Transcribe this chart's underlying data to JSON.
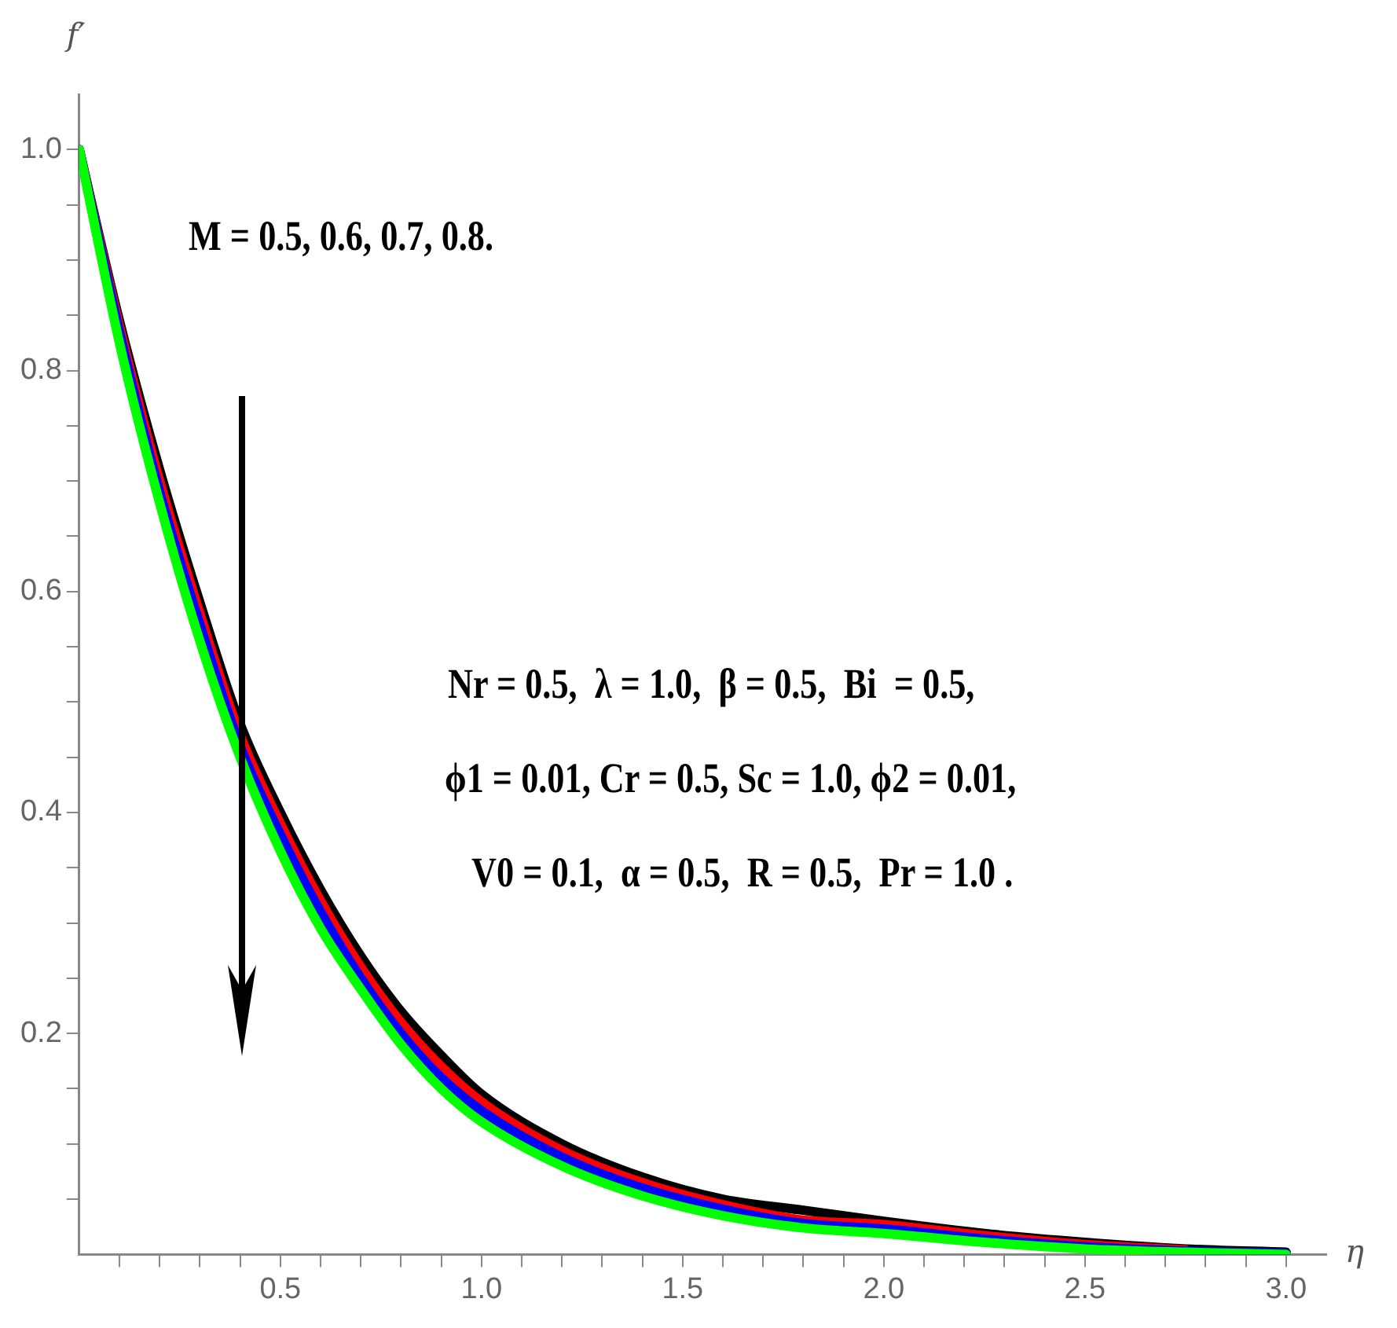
{
  "chart_data": {
    "type": "line",
    "xlabel": "η",
    "ylabel": "f′",
    "x": [
      0,
      0.1,
      0.2,
      0.3,
      0.4,
      0.5,
      0.6,
      0.7,
      0.8,
      0.9,
      1.0,
      1.2,
      1.4,
      1.6,
      1.8,
      2.0,
      2.25,
      2.5,
      2.75,
      3.0
    ],
    "series": [
      {
        "color": "#000000",
        "values": [
          1,
          0.845,
          0.71,
          0.59,
          0.48,
          0.4,
          0.33,
          0.27,
          0.22,
          0.18,
          0.145,
          0.1,
          0.07,
          0.05,
          0.04,
          0.03,
          0.019,
          0.011,
          0.005,
          0.002
        ]
      },
      {
        "color": "#ff0000",
        "values": [
          1,
          0.84,
          0.7,
          0.58,
          0.47,
          0.39,
          0.32,
          0.26,
          0.21,
          0.17,
          0.138,
          0.094,
          0.065,
          0.045,
          0.031,
          0.027,
          0.017,
          0.009,
          0.004,
          null
        ]
      },
      {
        "color": "#0000ff",
        "values": [
          1,
          0.835,
          0.69,
          0.57,
          0.46,
          0.38,
          0.31,
          0.25,
          0.2,
          0.16,
          0.13,
          0.088,
          0.06,
          0.041,
          0.028,
          0.023,
          0.014,
          0.007,
          0.003,
          0.001
        ]
      },
      {
        "color": "#00ff00",
        "values": [
          1,
          0.825,
          0.68,
          0.555,
          0.45,
          0.365,
          0.295,
          0.24,
          0.19,
          0.15,
          0.12,
          0.08,
          0.053,
          0.035,
          0.024,
          0.019,
          0.011,
          0.005,
          0.002,
          0
        ]
      }
    ],
    "xlim": [
      0,
      3.1
    ],
    "ylim": [
      0,
      1.05
    ],
    "xticks": [
      {
        "value": 0.1,
        "label": null
      },
      {
        "value": 0.2,
        "label": null
      },
      {
        "value": 0.3,
        "label": null
      },
      {
        "value": 0.4,
        "label": null
      },
      0.5,
      {
        "value": 0.6,
        "label": null
      },
      {
        "value": 0.7,
        "label": null
      },
      {
        "value": 0.8,
        "label": null
      },
      {
        "value": 0.9,
        "label": null
      },
      {
        "value": 1.0,
        "label": "1.0"
      },
      {
        "value": 1.1,
        "label": null
      },
      {
        "value": 1.2,
        "label": null
      },
      {
        "value": 1.3,
        "label": null
      },
      {
        "value": 1.4,
        "label": null
      },
      1.5,
      {
        "value": 1.6,
        "label": null
      },
      {
        "value": 1.7,
        "label": null
      },
      {
        "value": 1.8,
        "label": null
      },
      {
        "value": 1.9,
        "label": null
      },
      {
        "value": 2.0,
        "label": "2.0"
      },
      {
        "value": 2.1,
        "label": null
      },
      {
        "value": 2.2,
        "label": null
      },
      {
        "value": 2.3,
        "label": null
      },
      {
        "value": 2.4,
        "label": null
      },
      2.5,
      {
        "value": 2.6,
        "label": null
      },
      {
        "value": 2.7,
        "label": null
      },
      {
        "value": 2.8,
        "label": null
      },
      {
        "value": 2.9,
        "label": null
      },
      {
        "value": 3.0,
        "label": "3.0"
      }
    ],
    "yticks": [
      {
        "value": 0.05,
        "label": null
      },
      {
        "value": 0.1,
        "label": null
      },
      {
        "value": 0.15,
        "label": null
      },
      0.2,
      {
        "value": 0.25,
        "label": null
      },
      {
        "value": 0.3,
        "label": null
      },
      {
        "value": 0.35,
        "label": null
      },
      0.4,
      {
        "value": 0.45,
        "label": null
      },
      {
        "value": 0.5,
        "label": null
      },
      {
        "value": 0.55,
        "label": null
      },
      0.6,
      {
        "value": 0.65,
        "label": null
      },
      {
        "value": 0.7,
        "label": null
      },
      {
        "value": 0.75,
        "label": null
      },
      0.8,
      {
        "value": 0.85,
        "label": null
      },
      {
        "value": 0.9,
        "label": null
      },
      {
        "value": 0.95,
        "label": null
      },
      {
        "value": 1.0,
        "label": "1.0"
      }
    ],
    "grid": false,
    "legend": false,
    "marker": "none",
    "line_style": "solid",
    "annotations": [
      "M = 0.5, 0.6, 0.7, 0.8.",
      "Nr = 0.5,  λ = 1.0,  β = 0.5,  Bi  = 0.5,",
      "ϕ1 = 0.01, Cr = 0.5, Sc = 1.0, ϕ2 = 0.01,",
      "V0 = 0.1,  α = 0.5,  R = 0.5,  Pr = 1.0 ."
    ]
  }
}
